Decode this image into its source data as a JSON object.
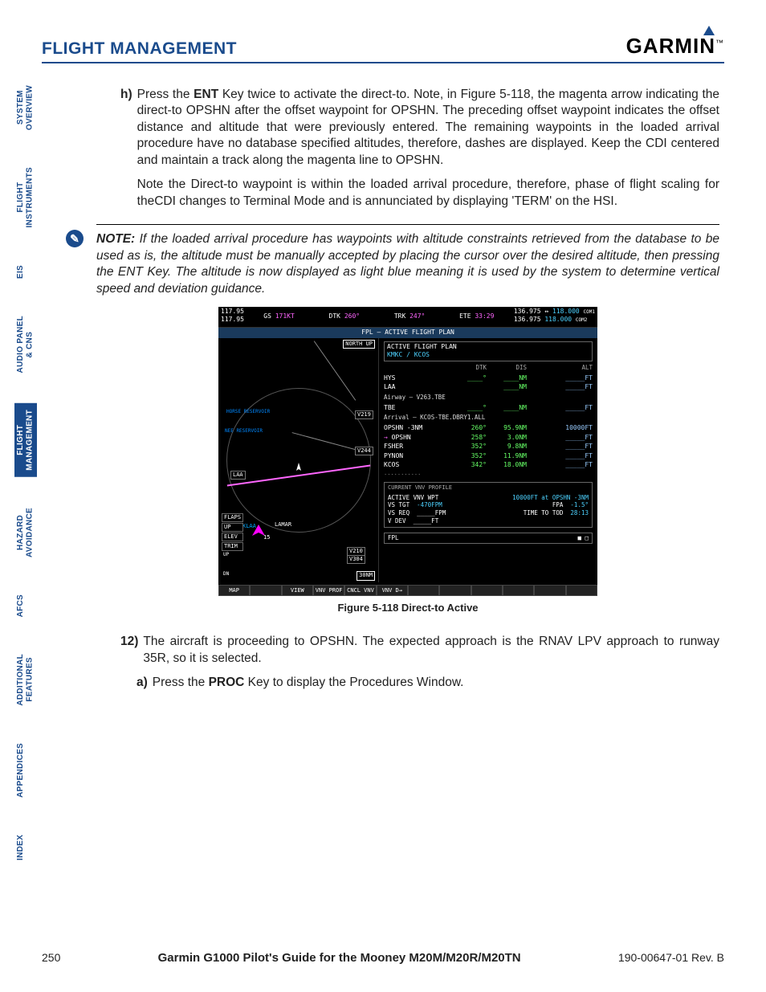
{
  "header": {
    "section_title": "FLIGHT MANAGEMENT",
    "logo_text": "GARMIN",
    "logo_tm": "™"
  },
  "tabs": [
    {
      "label": "SYSTEM\nOVERVIEW",
      "active": false
    },
    {
      "label": "FLIGHT\nINSTRUMENTS",
      "active": false
    },
    {
      "label": "EIS",
      "active": false
    },
    {
      "label": "AUDIO PANEL\n& CNS",
      "active": false
    },
    {
      "label": "FLIGHT\nMANAGEMENT",
      "active": true
    },
    {
      "label": "HAZARD\nAVOIDANCE",
      "active": false
    },
    {
      "label": "AFCS",
      "active": false
    },
    {
      "label": "ADDITIONAL\nFEATURES",
      "active": false
    },
    {
      "label": "APPENDICES",
      "active": false
    },
    {
      "label": "INDEX",
      "active": false
    }
  ],
  "body": {
    "h_label": "h)",
    "h_text_1": "Press the ",
    "h_bold_1": "ENT",
    "h_text_2": " Key twice to activate the direct-to.  Note, in Figure 5-118, the magenta arrow indicating the direct-to OPSHN after the offset waypoint for OPSHN.  The preceding offset waypoint indicates the offset distance and altitude that were previously entered.  The remaining waypoints in the loaded arrival procedure have no database specified altitudes, therefore, dashes are displayed.  Keep the CDI centered and maintain a track along the magenta line to OPSHN.",
    "h_text_3": "Note the Direct-to waypoint is within the loaded arrival procedure, therefore, phase of flight scaling for theCDI changes to Terminal Mode and is annunciated by displaying 'TERM' on the HSI.",
    "note_label": "NOTE:",
    "note_text": "  If the loaded arrival procedure has waypoints with altitude constraints retrieved from the database to be used as is, the altitude must be manually accepted by placing the cursor over the desired altitude, then pressing the ENT Key.  The altitude is now displayed as light blue meaning it is used by the system to determine vertical speed and deviation guidance.",
    "twelve_label": "12)",
    "twelve_text": "The aircraft is proceeding to OPSHN.  The expected approach is the RNAV LPV approach to runway 35R, so it is selected.",
    "a_label": "a)",
    "a_text_1": "Press the ",
    "a_bold": "PROC",
    "a_text_2": " Key to display the Procedures Window."
  },
  "figure": {
    "caption": "Figure 5-118  Direct-to Active",
    "topbar": {
      "nav1": "117.95",
      "nav2": "117.95",
      "gs": "GS",
      "gs_val": "171KT",
      "dtk": "DTK",
      "dtk_val": "260°",
      "trk": "TRK",
      "trk_val": "247°",
      "ete": "ETE",
      "ete_val": "33:29",
      "com1a": "136.975 ↔",
      "com1b": "118.000",
      "com1l": "COM1",
      "com2a": "136.975",
      "com2b": "118.000",
      "com2l": "COM2"
    },
    "screen_title": "FPL – ACTIVE FLIGHT PLAN",
    "map": {
      "north_up": "NORTH UP",
      "scale": "30NM",
      "labels": {
        "v219": "V219",
        "v244": "V244",
        "v210": "V210",
        "v304": "V304",
        "laa": "LAA",
        "klaa": "KLAA",
        "lamar": "LAMAR",
        "reservoir1": "HORSE RESERVOIR",
        "reservoir2": "NEE RESERVOIR"
      },
      "flaps": "FLAPS",
      "flaps_val": "UP",
      "elev": "ELEV",
      "trim": "TRIM",
      "trim_val": "UP",
      "dn": "DN",
      "compass": "15"
    },
    "fpl": {
      "header": "ACTIVE FLIGHT PLAN",
      "route": "KMKC / KCOS",
      "col_dtk": "DTK",
      "col_dis": "DIS",
      "col_alt": "ALT",
      "rows": [
        {
          "name": "HYS",
          "dtk": "____°",
          "dis": "____NM",
          "alt": "_____FT"
        },
        {
          "name": "LAA",
          "dtk": "",
          "dis": "____NM",
          "alt": "_____FT"
        }
      ],
      "airway_label": "Airway – V263.TBE",
      "tbe_row": {
        "name": "TBE",
        "dtk": "____°",
        "dis": "____NM",
        "alt": "_____FT"
      },
      "arrival_label": "Arrival – KCOS-TBE.DBRY1.ALL",
      "arr_rows": [
        {
          "name": "OPSHN -3NM",
          "dtk": "260°",
          "dis": "95.9NM",
          "alt": "10000FT"
        },
        {
          "name": "OPSHN",
          "dtk": "258°",
          "dis": "3.0NM",
          "alt": "_____FT",
          "arrow": true
        },
        {
          "name": "FSHER",
          "dtk": "352°",
          "dis": "9.8NM",
          "alt": "_____FT"
        },
        {
          "name": "PYNON",
          "dtk": "352°",
          "dis": "11.9NM",
          "alt": "_____FT"
        },
        {
          "name": "KCOS",
          "dtk": "342°",
          "dis": "18.0NM",
          "alt": "_____FT"
        }
      ],
      "dots": "..........."
    },
    "vnv": {
      "title": "CURRENT VNV PROFILE",
      "wpt_lbl": "ACTIVE VNV WPT",
      "wpt_val": "10000FT at OPSHN -3NM",
      "vs_tgt_lbl": "VS TGT",
      "vs_tgt_val": "-470FPM",
      "fpa_lbl": "FPA",
      "fpa_val": "-1.5°",
      "vs_req_lbl": "VS REQ",
      "vs_req_val": "_____FPM",
      "tod_lbl": "TIME TO TOD",
      "tod_val": "28:13",
      "vdev_lbl": "V DEV",
      "vdev_val": "_____FT"
    },
    "fpl_btm_left": "FPL",
    "fpl_btm_right": "■ □",
    "softkeys": {
      "map": "MAP",
      "view": "VIEW",
      "vnvprof": "VNV PROF",
      "cnclvnv": "CNCL VNV",
      "vnvd": "VNV D→"
    }
  },
  "footer": {
    "page_num": "250",
    "guide_title": "Garmin G1000 Pilot's Guide for the Mooney M20M/M20R/M20TN",
    "doc_rev": "190-00647-01   Rev. B"
  },
  "colors": {
    "brand_blue": "#1a4b8c",
    "cyan": "#4dd2ff",
    "magenta": "#ff66ff",
    "green": "#66ff66",
    "screen_bg": "#000000"
  }
}
